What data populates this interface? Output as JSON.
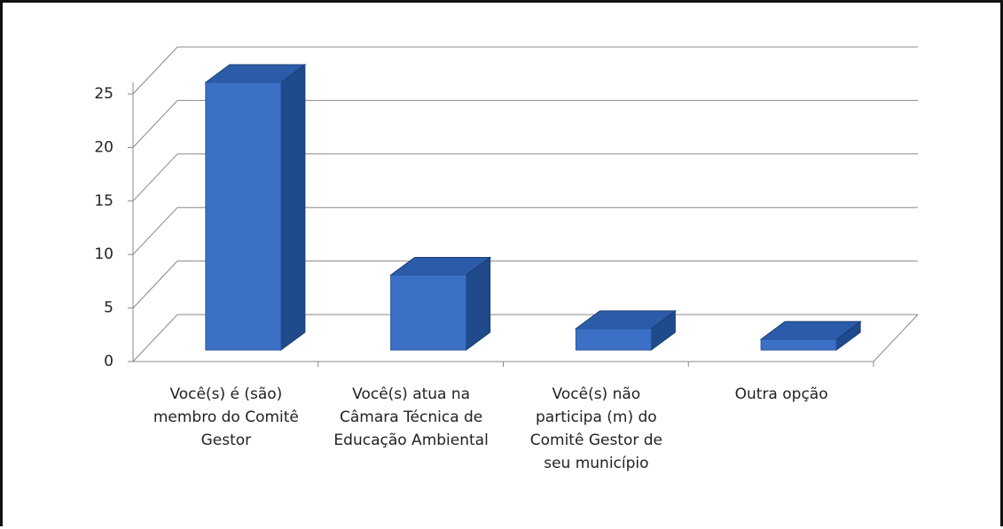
{
  "chart_data": {
    "type": "bar3d",
    "categories": [
      "Você(s) é (são) membro do Comitê Gestor",
      "Você(s) atua na Câmara Técnica de Educação Ambiental",
      "Você(s) não participa (m) do Comitê Gestor de seu município",
      "Outra opção"
    ],
    "values": [
      25,
      7,
      2,
      1
    ],
    "color": "#3b70c6",
    "ylim": [
      0,
      25
    ],
    "yticks": [
      0,
      5,
      10,
      15,
      20,
      25
    ],
    "grid": true
  }
}
